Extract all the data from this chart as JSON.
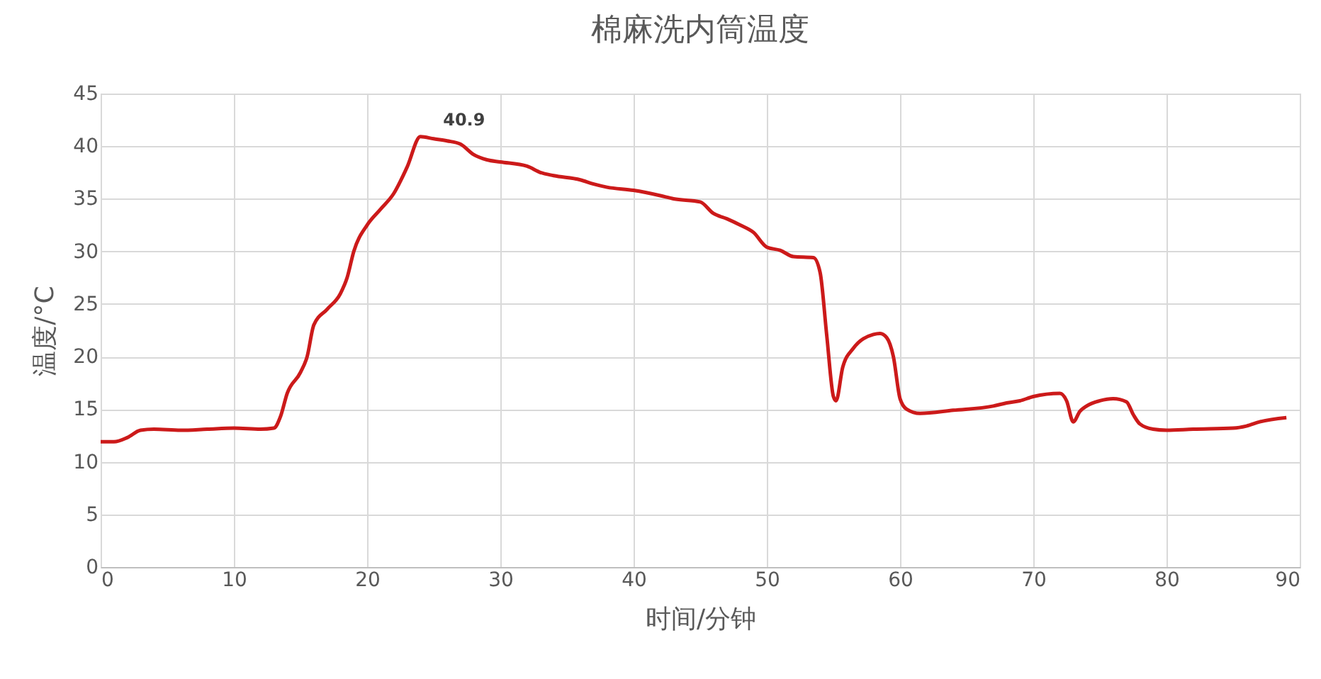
{
  "chart_data": {
    "type": "line",
    "title": "棉麻洗内筒温度",
    "xlabel": "时间/分钟",
    "ylabel": "温度/°C",
    "x": [
      0,
      1,
      2,
      3,
      4,
      6,
      8,
      10,
      12,
      13,
      13.5,
      14,
      15,
      15.5,
      16,
      17,
      18,
      18.5,
      19,
      20,
      21,
      22,
      23,
      24,
      25,
      26,
      27,
      28,
      29,
      30,
      32,
      33,
      34,
      36,
      37,
      38,
      40,
      42,
      43,
      45,
      46,
      47,
      48,
      49,
      50,
      51,
      52,
      53.5,
      54,
      54.5,
      55,
      55.2,
      55.7,
      56.5,
      58,
      58.5,
      59,
      59.5,
      60,
      60.5,
      61.5,
      64,
      67,
      68,
      69,
      70,
      72,
      72.5,
      73,
      73.5,
      74,
      75,
      76,
      77,
      77.5,
      78,
      79,
      80,
      82,
      85,
      86,
      87,
      89
    ],
    "series": [
      {
        "color": "#cc1a1a",
        "values": [
          11.9,
          11.9,
          12.3,
          13.0,
          13.1,
          13.0,
          13.1,
          13.2,
          13.1,
          13.2,
          14.3,
          16.5,
          18.5,
          20,
          23,
          24.5,
          26,
          27.5,
          30,
          32.5,
          34,
          35.5,
          38,
          40.9,
          40.7,
          40.5,
          40.2,
          39.2,
          38.7,
          38.5,
          38.1,
          37.5,
          37.2,
          36.8,
          36.4,
          36.1,
          35.8,
          35.3,
          35.0,
          34.7,
          33.6,
          33.1,
          32.5,
          31.8,
          30.4,
          30.1,
          29.5,
          29.4,
          28,
          22,
          16.2,
          15.8,
          19,
          20.8,
          22.1,
          22.2,
          21.8,
          20,
          16,
          15,
          14.6,
          14.9,
          15.3,
          15.6,
          15.8,
          16.2,
          16.5,
          15.8,
          13.8,
          14.8,
          15.3,
          15.8,
          16,
          15.7,
          14.5,
          13.6,
          13.1,
          13.0,
          13.1,
          13.2,
          13.4,
          13.8,
          14.2
        ]
      }
    ],
    "annotations": [
      {
        "text": "40.9",
        "x": 24,
        "y": 40.9
      }
    ],
    "xlim": [
      0,
      90
    ],
    "xticks": [
      0,
      10,
      20,
      30,
      40,
      50,
      60,
      70,
      80,
      90
    ],
    "ylim": [
      0,
      45
    ],
    "yticks": [
      0,
      5,
      10,
      15,
      20,
      25,
      30,
      35,
      40,
      45
    ],
    "grid": true,
    "marker": "none",
    "line_style": "solid"
  }
}
